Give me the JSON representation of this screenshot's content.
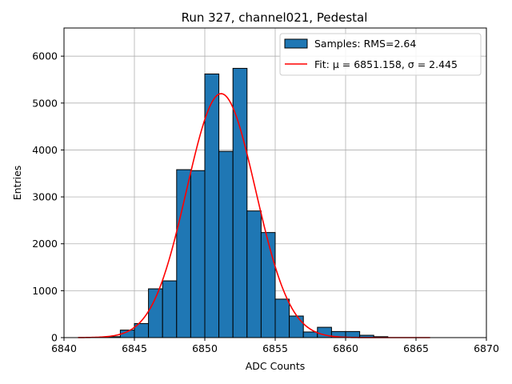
{
  "chart_data": {
    "type": "bar",
    "title": "Run 327, channel021, Pedestal",
    "xlabel": "ADC Counts",
    "ylabel": "Entries",
    "xlim": [
      6840,
      6870
    ],
    "ylim": [
      0,
      6600
    ],
    "xticks": [
      6840,
      6845,
      6850,
      6855,
      6860,
      6865,
      6870
    ],
    "yticks": [
      0,
      1000,
      2000,
      3000,
      4000,
      5000,
      6000
    ],
    "grid": true,
    "legend_position": "top-right",
    "colors": {
      "bars": "#1f77b4",
      "bar_edge": "#000000",
      "fit": "#ff0000",
      "grid": "#b0b0b0"
    },
    "bins": {
      "edges": [
        6843,
        6844,
        6845,
        6846,
        6847,
        6848,
        6849,
        6850,
        6851,
        6852,
        6853,
        6854,
        6855,
        6856,
        6857,
        6858,
        6859,
        6860,
        6861,
        6862,
        6863
      ],
      "counts": [
        20,
        160,
        300,
        1040,
        1210,
        3580,
        3560,
        5620,
        3970,
        5740,
        2700,
        2240,
        820,
        460,
        120,
        220,
        130,
        130,
        50,
        20
      ]
    },
    "series": [
      {
        "name": "Samples: RMS=2.64",
        "kind": "histogram"
      },
      {
        "name": "Fit: μ = 6851.158, σ = 2.445",
        "kind": "line",
        "x_range": [
          6841,
          6866
        ],
        "amplitude": 5200,
        "mu": 6851.158,
        "sigma": 2.445
      }
    ]
  }
}
